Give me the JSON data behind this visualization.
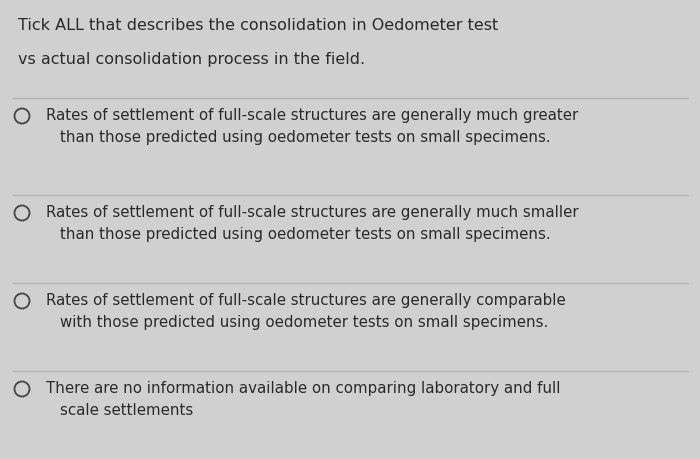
{
  "background_color": "#d0d0d0",
  "title_line1": "Tick ALL that describes the consolidation in Oedometer test",
  "title_line2": "vs actual consolidation process in the field.",
  "options": [
    {
      "line1": "Rates of settlement of full-scale structures are generally much greater",
      "line2": "than those predicted using oedometer tests on small specimens."
    },
    {
      "line1": "Rates of settlement of full-scale structures are generally much smaller",
      "line2": "than those predicted using oedometer tests on small specimens."
    },
    {
      "line1": "Rates of settlement of full-scale structures are generally comparable",
      "line2": "with those predicted using oedometer tests on small specimens."
    },
    {
      "line1": "There are no information available on comparing laboratory and full",
      "line2": "scale settlements"
    }
  ],
  "divider_color": "#b0b0b0",
  "text_color": "#2a2a2a",
  "circle_edge_color": "#444444",
  "title_fontsize": 11.5,
  "option_fontsize": 10.8,
  "fig_width": 7.0,
  "fig_height": 4.59,
  "dpi": 100
}
